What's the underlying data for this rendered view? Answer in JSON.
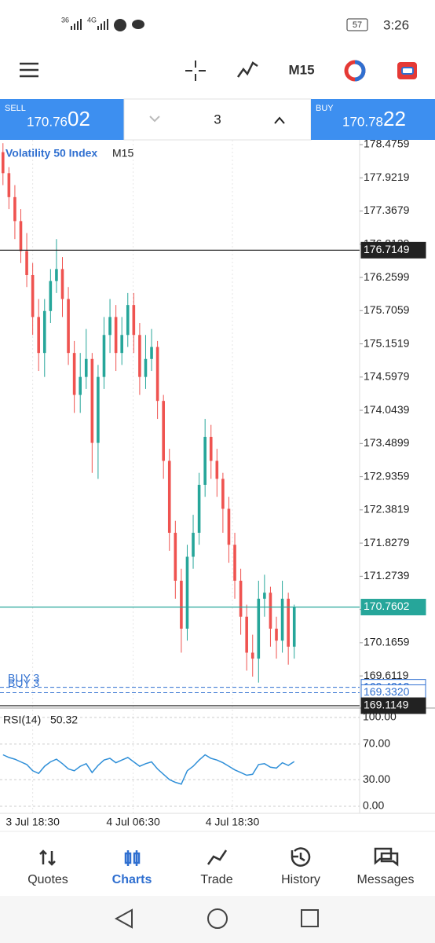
{
  "status": {
    "signal1": "36",
    "signal2": "4G",
    "battery": "57",
    "time": "3:26"
  },
  "toolbar": {
    "timeframe": "M15"
  },
  "trade": {
    "sell_label": "SELL",
    "sell_price": "170.76",
    "sell_pips": "02",
    "volume": "3",
    "buy_label": "BUY",
    "buy_price": "170.78",
    "buy_pips": "22"
  },
  "chart_data": {
    "type": "candlestick",
    "symbol": "Volatility 50 Index",
    "timeframe": "M15",
    "up_color": "#26a69a",
    "down_color": "#ef5350",
    "ylim": [
      169.089,
      178.555
    ],
    "yticks": [
      178.4759,
      177.9219,
      177.3679,
      176.8139,
      176.2599,
      175.7059,
      175.1519,
      174.5979,
      174.0439,
      173.4899,
      172.9359,
      172.3819,
      171.8279,
      171.2739,
      170.7199,
      170.1659,
      169.6119
    ],
    "xlim": [
      0,
      60.5
    ],
    "xticks": [
      {
        "value": 5.5,
        "label": "3 Jul 18:30"
      },
      {
        "value": 22.4,
        "label": "4 Jul 06:30"
      },
      {
        "value": 39.1,
        "label": "4 Jul 18:30"
      }
    ],
    "open": [
      178.35,
      178.0,
      177.6,
      177.2,
      176.7,
      176.3,
      175.6,
      175.0,
      175.7,
      176.2,
      176.4,
      175.9,
      175.0,
      174.3,
      174.6,
      174.9,
      173.5,
      174.6,
      175.3,
      175.6,
      175.0,
      175.3,
      175.8,
      175.3,
      174.6,
      174.9,
      175.1,
      174.2,
      173.2,
      172.0,
      171.2,
      170.4,
      171.6,
      172.0,
      172.8,
      173.6,
      173.2,
      172.9,
      172.4,
      171.8,
      171.2,
      170.6,
      170.0,
      169.9,
      170.9,
      171.0,
      170.4,
      170.2,
      170.9,
      170.1
    ],
    "high": [
      178.5,
      178.1,
      177.8,
      177.4,
      177.0,
      176.5,
      175.9,
      175.9,
      176.4,
      176.9,
      176.6,
      176.1,
      175.2,
      175.0,
      175.4,
      175.0,
      174.8,
      175.6,
      175.9,
      175.8,
      175.6,
      176.0,
      176.0,
      175.5,
      175.3,
      175.4,
      175.2,
      174.3,
      173.4,
      172.2,
      171.4,
      171.8,
      172.3,
      173.0,
      173.9,
      173.8,
      173.4,
      173.0,
      172.6,
      172.0,
      171.4,
      170.8,
      170.3,
      171.2,
      171.3,
      171.1,
      170.6,
      171.2,
      171.0,
      170.8
    ],
    "low": [
      177.8,
      177.4,
      176.9,
      176.5,
      176.1,
      175.3,
      174.7,
      174.6,
      175.5,
      176.0,
      175.6,
      174.8,
      174.0,
      174.0,
      174.4,
      173.0,
      172.9,
      174.4,
      175.0,
      174.7,
      174.8,
      175.1,
      175.0,
      174.3,
      174.4,
      174.7,
      173.9,
      172.9,
      171.7,
      170.9,
      170.0,
      170.2,
      171.4,
      171.8,
      172.6,
      172.9,
      172.6,
      172.0,
      171.5,
      170.9,
      170.3,
      169.7,
      169.6,
      169.5,
      170.6,
      170.1,
      169.9,
      170.0,
      169.8,
      169.9
    ],
    "close": [
      178.0,
      177.6,
      177.2,
      176.7,
      176.3,
      175.6,
      175.0,
      175.7,
      176.2,
      176.4,
      175.9,
      175.0,
      174.3,
      174.6,
      174.9,
      173.5,
      174.6,
      175.3,
      175.6,
      175.0,
      175.3,
      175.8,
      175.3,
      174.6,
      174.9,
      175.1,
      174.2,
      173.2,
      172.0,
      171.2,
      170.4,
      171.6,
      172.0,
      172.8,
      173.6,
      173.2,
      172.9,
      172.4,
      171.8,
      171.2,
      170.6,
      170.0,
      169.9,
      170.9,
      171.0,
      170.4,
      170.2,
      170.9,
      170.1,
      170.7602
    ],
    "price_lines": [
      {
        "value": 176.7149,
        "label": "176.7149",
        "color": "#222222"
      },
      {
        "value": 170.7602,
        "label": "170.7602",
        "color": "#26a69a"
      },
      {
        "value": 169.4212,
        "label": "169.4212",
        "color": "#2f6fd0",
        "order": "BUY 3"
      },
      {
        "value": 169.332,
        "label": "169.3320",
        "color": "#2f6fd0",
        "order": "BUY 3"
      },
      {
        "value": 169.1149,
        "label": "169.1149",
        "color": "#222222"
      }
    ]
  },
  "rsi": {
    "title": "RSI(14)",
    "color": "#2f8fd8",
    "ylim": [
      0,
      100
    ],
    "yticks": [
      {
        "value": 100,
        "label": "100.00"
      },
      {
        "value": 70,
        "label": "70.00"
      },
      {
        "value": 30,
        "label": "30.00"
      },
      {
        "value": 0,
        "label": "0.00"
      }
    ],
    "values": [
      58,
      55,
      53,
      50,
      47,
      40,
      37,
      45,
      50,
      53,
      48,
      42,
      40,
      45,
      48,
      38,
      46,
      52,
      54,
      49,
      52,
      55,
      50,
      45,
      48,
      50,
      42,
      36,
      30,
      27,
      25,
      40,
      45,
      52,
      58,
      54,
      52,
      49,
      45,
      41,
      38,
      35,
      36,
      47,
      48,
      44,
      43,
      49,
      46,
      50.32
    ]
  },
  "nav": [
    "Quotes",
    "Charts",
    "Trade",
    "History",
    "Messages"
  ]
}
